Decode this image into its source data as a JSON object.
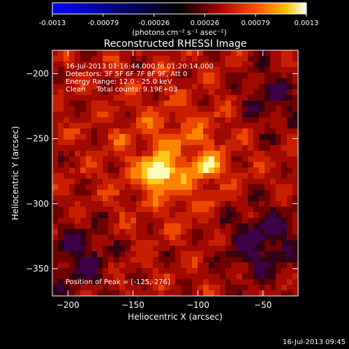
{
  "colorbar": {
    "ticks": [
      "-0.0013",
      "-0.00079",
      "-0.00026",
      "0.00026",
      "0.00079",
      "0.0013"
    ],
    "unit_label": "(photons cm⁻² s⁻¹ asec⁻²)",
    "range": [
      -0.0013,
      0.0013
    ]
  },
  "chart_data": {
    "type": "heatmap",
    "title": "Reconstructed RHESSI Image",
    "xlabel": "Heliocentric X (arcsec)",
    "ylabel": "Heliocentric Y (arcsec)",
    "xlim": [
      -212,
      -23
    ],
    "ylim": [
      -371,
      -182
    ],
    "x_ticks": [
      -200,
      -150,
      -100,
      -50
    ],
    "y_ticks": [
      -200,
      -250,
      -300,
      -350
    ],
    "annotations": [
      "16-Jul-2013 01:16:44.000 to 01:20:14.000",
      "Detectors: 3F 5F 6F 7F 8F 9F, Att 0",
      "Energy Range: 12.0 - 25.0 keV",
      "Clean     Total counts: 9.19E+03"
    ],
    "peak_label": "Position of Peak = [-125,-276]",
    "peak_position": [
      -125,
      -276
    ]
  },
  "footer": {
    "timestamp": "16-Jul-2013 09:45"
  }
}
